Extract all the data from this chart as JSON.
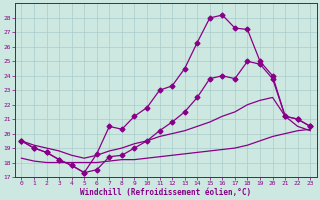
{
  "xlabel": "Windchill (Refroidissement éolien,°C)",
  "background_color": "#cde8e0",
  "grid_color": "#aacccc",
  "line_color": "#880088",
  "xlim": [
    -0.5,
    23.5
  ],
  "ylim": [
    17,
    29
  ],
  "yticks": [
    17,
    18,
    19,
    20,
    21,
    22,
    23,
    24,
    25,
    26,
    27,
    28
  ],
  "xticks": [
    0,
    1,
    2,
    3,
    4,
    5,
    6,
    7,
    8,
    9,
    10,
    11,
    12,
    13,
    14,
    15,
    16,
    17,
    18,
    19,
    20,
    21,
    22,
    23
  ],
  "curve1_x": [
    0,
    1,
    2,
    3,
    4,
    5,
    6,
    7,
    8,
    9,
    10,
    11,
    12,
    13,
    14,
    15,
    16,
    17,
    18,
    19,
    20,
    21,
    22,
    23
  ],
  "curve1_y": [
    19.5,
    19.0,
    18.7,
    18.2,
    17.8,
    17.3,
    18.6,
    20.5,
    20.3,
    21.2,
    21.8,
    23.0,
    23.3,
    24.5,
    26.3,
    28.0,
    28.2,
    27.3,
    27.2,
    25.0,
    24.0,
    21.2,
    21.0,
    20.5
  ],
  "curve2_x": [
    0,
    1,
    2,
    3,
    4,
    5,
    6,
    7,
    8,
    9,
    10,
    11,
    12,
    13,
    14,
    15,
    16,
    17,
    18,
    19,
    20,
    21,
    22,
    23
  ],
  "curve2_y": [
    19.5,
    19.0,
    18.7,
    18.2,
    17.8,
    17.3,
    17.5,
    18.4,
    18.5,
    19.0,
    19.5,
    20.2,
    20.8,
    21.5,
    22.5,
    23.8,
    24.0,
    23.8,
    25.0,
    24.8,
    23.8,
    21.2,
    21.0,
    20.5
  ],
  "curve3_x": [
    0,
    1,
    2,
    3,
    4,
    5,
    6,
    7,
    8,
    9,
    10,
    11,
    12,
    13,
    14,
    15,
    16,
    17,
    18,
    19,
    20,
    21,
    22,
    23
  ],
  "curve3_y": [
    19.5,
    19.2,
    19.0,
    18.8,
    18.5,
    18.3,
    18.5,
    18.8,
    19.0,
    19.3,
    19.5,
    19.8,
    20.0,
    20.2,
    20.5,
    20.8,
    21.2,
    21.5,
    22.0,
    22.3,
    22.5,
    21.2,
    20.5,
    20.2
  ],
  "curve4_x": [
    0,
    1,
    2,
    3,
    4,
    5,
    6,
    7,
    8,
    9,
    10,
    11,
    12,
    13,
    14,
    15,
    16,
    17,
    18,
    19,
    20,
    21,
    22,
    23
  ],
  "curve4_y": [
    18.3,
    18.1,
    18.0,
    18.0,
    18.0,
    18.0,
    18.0,
    18.1,
    18.2,
    18.2,
    18.3,
    18.4,
    18.5,
    18.6,
    18.7,
    18.8,
    18.9,
    19.0,
    19.2,
    19.5,
    19.8,
    20.0,
    20.2,
    20.3
  ]
}
